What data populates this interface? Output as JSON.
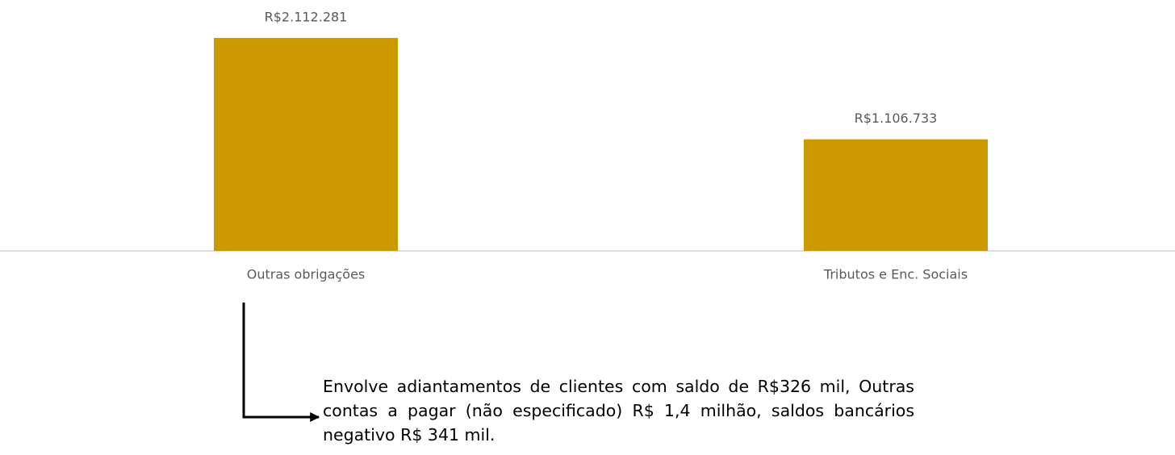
{
  "chart_data": {
    "type": "bar",
    "categories": [
      "Outras obrigações",
      "Tributos e Enc. Sociais"
    ],
    "values": [
      2112281,
      1106733
    ],
    "value_labels": [
      "R$2.112.281",
      "R$1.106.733"
    ],
    "color": "#cc9900",
    "annotation": "Envolve adiantamentos de clientes com saldo de R$326 mil, Outras contas a pagar (não especificado) R$ 1,4 milhão, saldos bancários negativo R$ 341 mil."
  }
}
